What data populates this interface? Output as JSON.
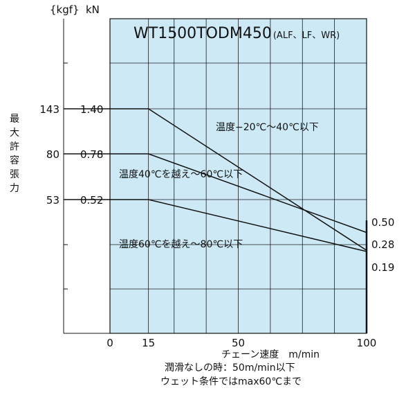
{
  "chart_data": {
    "type": "line",
    "title": "WT1500TODM450",
    "subtitle": "(ALF、LF、WR)",
    "xlabel": "チェーン速度　m/min",
    "ylabel": "最大許容張力",
    "unit_kgf": "{kgf}",
    "unit_kn": "kN",
    "xlim": [
      0,
      100
    ],
    "x_ticks": [
      "0",
      "15",
      "50",
      "100"
    ],
    "ylim": [
      0,
      2.0
    ],
    "grid": true,
    "background_color": "#cde9f5",
    "line_color": "#111111",
    "series": [
      {
        "x": [
          0,
          15,
          100
        ],
        "values": [
          1.4,
          1.4,
          0.5
        ],
        "kgf_label": "143",
        "kn_label": "1.40",
        "end_label": "0.50",
        "annotation": "温度−20℃〜40℃以下"
      },
      {
        "x": [
          0,
          15,
          100
        ],
        "values": [
          0.78,
          0.78,
          0.28
        ],
        "kgf_label": "80",
        "kn_label": "0.78",
        "end_label": "0.28",
        "annotation": "温度40℃を越え〜60℃以下"
      },
      {
        "x": [
          0,
          15,
          100
        ],
        "values": [
          0.52,
          0.52,
          0.19
        ],
        "kgf_label": "53",
        "kn_label": "0.52",
        "end_label": "0.19",
        "annotation": "温度60℃を越え〜80℃以下"
      }
    ],
    "notes": [
      "潤滑なしの時：50m/min以下",
      "ウェット条件ではmax60℃まで"
    ]
  }
}
